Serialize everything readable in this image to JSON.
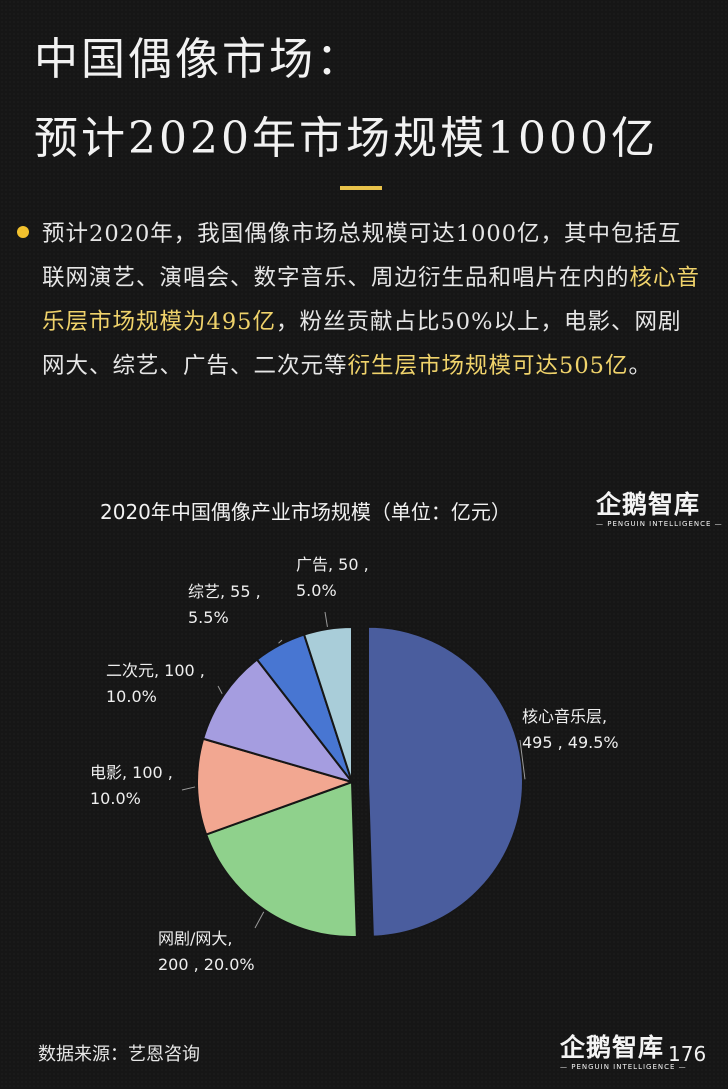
{
  "title": {
    "line1": "中国偶像市场：",
    "line2": "预计2020年市场规模1000亿"
  },
  "summary": {
    "part1": "预计2020年，我国偶像市场总规模可达1000亿，其中包括互联网演艺、演唱会、数字音乐、周边衍生品和唱片在内的",
    "highlight1": "核心音乐层市场规模为495亿",
    "part2": "，粉丝贡献占比50%以上，电影、网剧网大、综艺、广告、二次元等",
    "highlight2": "衍生层市场规模可达505亿",
    "part3": "。"
  },
  "logo": {
    "main": "企鹅智库",
    "sub": "— PENGUIN INTELLIGENCE —"
  },
  "footer": {
    "source": "数据来源：艺恩咨询",
    "page": "176"
  },
  "chart_data": {
    "type": "pie",
    "title": "2020年中国偶像产业市场规模（单位：亿元）",
    "unit": "亿元",
    "slices": [
      {
        "name": "核心音乐层",
        "value": 495,
        "percent": "49.5%",
        "color": "#4a5d9e",
        "label_lines": [
          "核心音乐层,",
          "495 , 49.5%"
        ]
      },
      {
        "name": "网剧/网大",
        "value": 200,
        "percent": "20.0%",
        "color": "#8fd18c",
        "label_lines": [
          "网剧/网大,",
          "200 , 20.0%"
        ]
      },
      {
        "name": "电影",
        "value": 100,
        "percent": "10.0%",
        "color": "#f2a791",
        "label_lines": [
          "电影, 100 ,",
          "10.0%"
        ]
      },
      {
        "name": "二次元",
        "value": 100,
        "percent": "10.0%",
        "color": "#a59de0",
        "label_lines": [
          "二次元, 100 ,",
          "10.0%"
        ]
      },
      {
        "name": "综艺",
        "value": 55,
        "percent": "5.5%",
        "color": "#4876d2",
        "label_lines": [
          "综艺, 55 ,",
          "5.5%"
        ]
      },
      {
        "name": "广告",
        "value": 50,
        "percent": "5.0%",
        "color": "#a9cdd9",
        "label_lines": [
          "广告, 50 ,",
          "5.0%"
        ]
      }
    ]
  }
}
